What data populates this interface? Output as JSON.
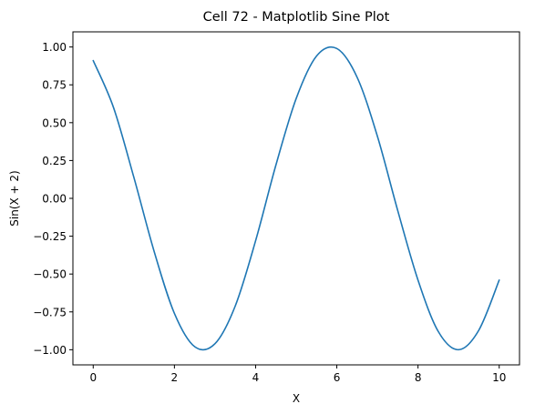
{
  "chart_data": {
    "type": "line",
    "title": "Cell 72 - Matplotlib Sine Plot",
    "xlabel": "X",
    "ylabel": "Sin(X + 2)",
    "xlim": [
      -0.5,
      10.5
    ],
    "ylim": [
      -1.1,
      1.1
    ],
    "xticks": [
      0,
      2,
      4,
      6,
      8,
      10
    ],
    "xtick_labels": [
      "0",
      "2",
      "4",
      "6",
      "8",
      "10"
    ],
    "yticks": [
      -1.0,
      -0.75,
      -0.5,
      -0.25,
      0.0,
      0.25,
      0.5,
      0.75,
      1.0
    ],
    "ytick_labels": [
      "−1.00",
      "−0.75",
      "−0.50",
      "−0.25",
      "0.00",
      "0.25",
      "0.50",
      "0.75",
      "1.00"
    ],
    "grid": false,
    "series": [
      {
        "color": "#1f77b4",
        "x": [
          0,
          0.5,
          1,
          1.5,
          2,
          2.5,
          3,
          3.5,
          4,
          4.5,
          5,
          5.5,
          6,
          6.5,
          7,
          7.5,
          8,
          8.5,
          9,
          9.5,
          10
        ],
        "y": [
          0.91,
          0.6,
          0.14,
          -0.35,
          -0.76,
          -0.98,
          -0.96,
          -0.71,
          -0.28,
          0.22,
          0.66,
          0.94,
          0.99,
          0.8,
          0.41,
          -0.08,
          -0.54,
          -0.88,
          -1.0,
          -0.87,
          -0.54
        ]
      }
    ]
  }
}
